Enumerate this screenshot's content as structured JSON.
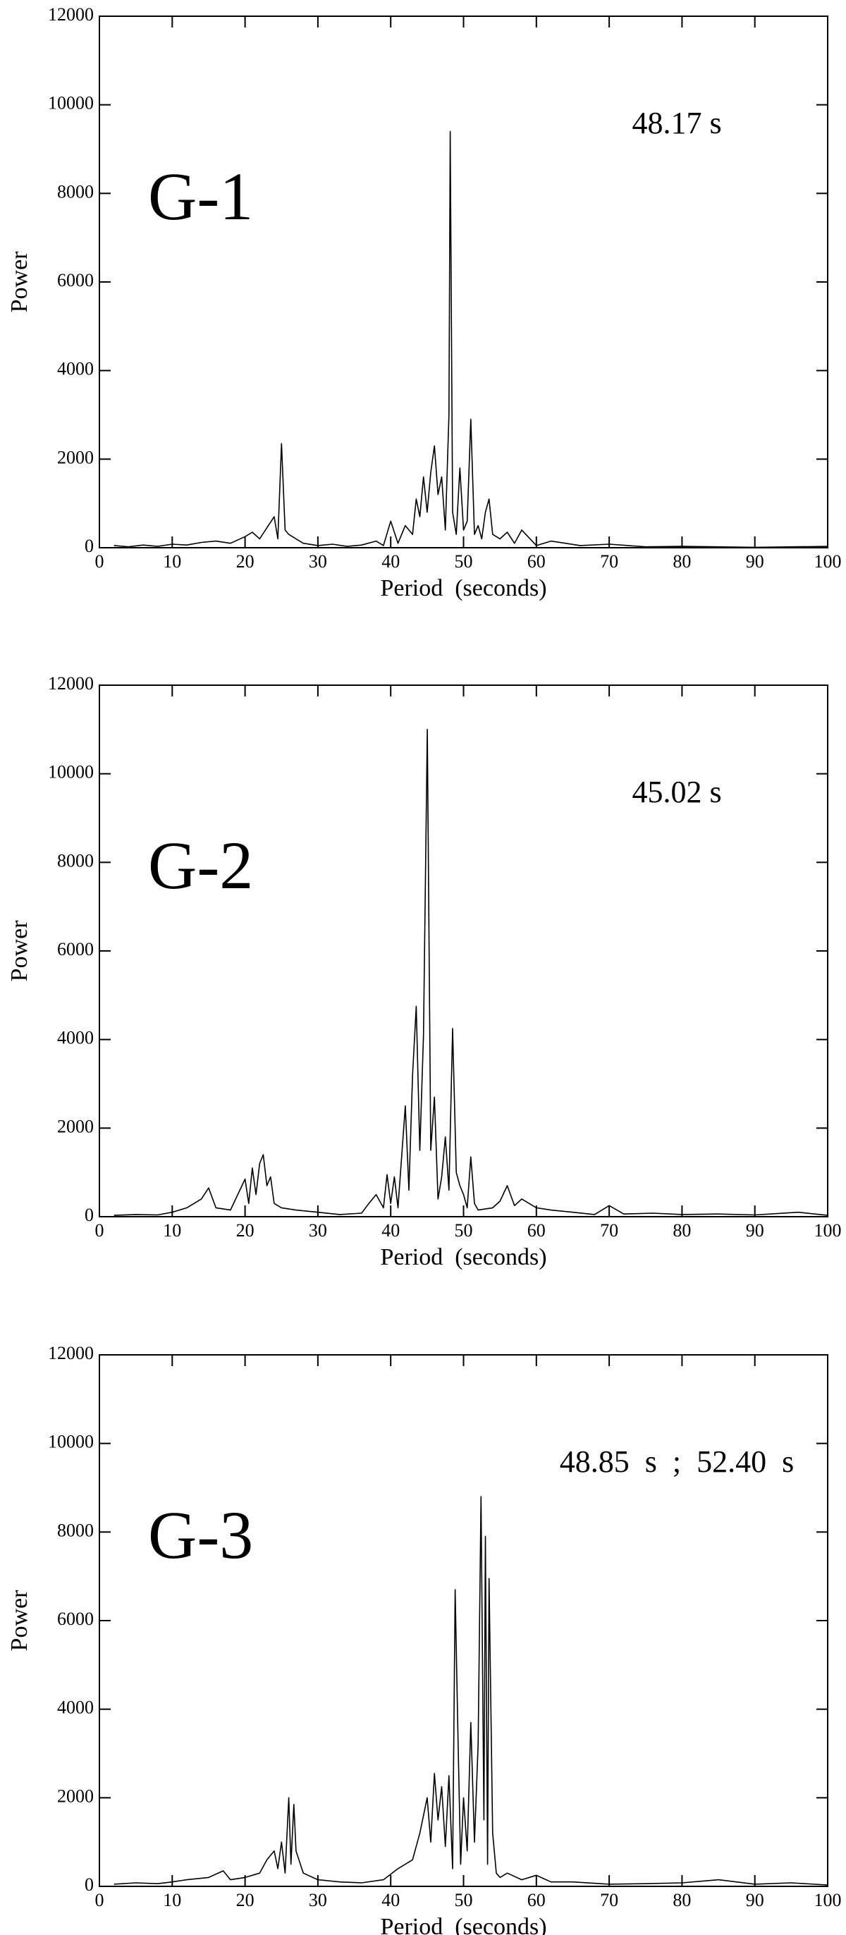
{
  "chart_data": [
    {
      "type": "line",
      "label": "G-1",
      "annotation": "48.17 s",
      "xlabel": "Period  (seconds)",
      "ylabel": "Power",
      "xlim": [
        0,
        100
      ],
      "ylim": [
        0,
        12000
      ],
      "xticks": [
        0,
        10,
        20,
        30,
        40,
        50,
        60,
        70,
        80,
        90,
        100
      ],
      "yticks": [
        0,
        2000,
        4000,
        6000,
        8000,
        10000,
        12000
      ],
      "color": "#000000",
      "x": [
        2,
        4,
        6,
        8,
        10,
        12,
        14,
        16,
        18,
        20,
        21,
        22,
        23,
        24,
        24.5,
        25,
        25.5,
        26,
        27,
        28,
        30,
        32,
        34,
        36,
        38,
        39,
        40,
        41,
        42,
        43,
        43.5,
        44,
        44.5,
        45,
        45.5,
        46,
        46.5,
        47,
        47.5,
        48,
        48.17,
        48.5,
        49,
        49.5,
        50,
        50.5,
        51,
        51.5,
        52,
        52.5,
        53,
        53.5,
        54,
        55,
        56,
        57,
        58,
        60,
        62,
        64,
        66,
        70,
        75,
        80,
        90,
        100
      ],
      "values": [
        50,
        20,
        60,
        30,
        80,
        60,
        120,
        150,
        100,
        250,
        350,
        200,
        450,
        700,
        200,
        2350,
        400,
        300,
        200,
        100,
        50,
        80,
        30,
        60,
        150,
        50,
        600,
        100,
        500,
        300,
        1100,
        700,
        1600,
        800,
        1700,
        2300,
        1200,
        1600,
        400,
        3000,
        9400,
        800,
        300,
        1800,
        400,
        600,
        2900,
        300,
        500,
        200,
        800,
        1100,
        300,
        200,
        350,
        100,
        400,
        50,
        150,
        100,
        50,
        80,
        20,
        30,
        10,
        30
      ]
    },
    {
      "type": "line",
      "label": "G-2",
      "annotation": "45.02 s",
      "xlabel": "Period  (seconds)",
      "ylabel": "Power",
      "xlim": [
        0,
        100
      ],
      "ylim": [
        0,
        12000
      ],
      "xticks": [
        0,
        10,
        20,
        30,
        40,
        50,
        60,
        70,
        80,
        90,
        100
      ],
      "yticks": [
        0,
        2000,
        4000,
        6000,
        8000,
        10000,
        12000
      ],
      "color": "#000000",
      "x": [
        2,
        5,
        8,
        10,
        12,
        14,
        15,
        16,
        18,
        20,
        20.5,
        21,
        21.5,
        22,
        22.5,
        23,
        23.5,
        24,
        25,
        27,
        30,
        33,
        36,
        37,
        38,
        39,
        39.5,
        40,
        40.5,
        41,
        42,
        42.5,
        43,
        43.5,
        44,
        44.5,
        45.02,
        45.5,
        46,
        46.5,
        47,
        47.5,
        48,
        48.5,
        49,
        49.5,
        50,
        50.5,
        51,
        51.5,
        52,
        54,
        55,
        56,
        57,
        58,
        60,
        62,
        65,
        68,
        70,
        72,
        76,
        80,
        85,
        90,
        96,
        100
      ],
      "values": [
        30,
        50,
        40,
        100,
        200,
        400,
        650,
        200,
        150,
        850,
        300,
        1100,
        500,
        1200,
        1400,
        700,
        900,
        300,
        200,
        150,
        100,
        50,
        80,
        300,
        500,
        200,
        950,
        300,
        900,
        200,
        2500,
        600,
        3200,
        4750,
        1500,
        4100,
        11000,
        1500,
        2700,
        400,
        900,
        1800,
        600,
        4250,
        1000,
        700,
        500,
        200,
        1350,
        300,
        150,
        200,
        350,
        700,
        250,
        400,
        200,
        150,
        100,
        50,
        250,
        60,
        80,
        50,
        60,
        40,
        100,
        30
      ]
    },
    {
      "type": "line",
      "label": "G-3",
      "annotation": "48.85  s  ;  52.40  s",
      "xlabel": "Period  (seconds)",
      "ylabel": "Power",
      "xlim": [
        0,
        100
      ],
      "ylim": [
        0,
        12000
      ],
      "xticks": [
        0,
        10,
        20,
        30,
        40,
        50,
        60,
        70,
        80,
        90,
        100
      ],
      "yticks": [
        0,
        2000,
        4000,
        6000,
        8000,
        10000,
        12000
      ],
      "color": "#000000",
      "x": [
        2,
        5,
        8,
        10,
        12,
        15,
        17,
        18,
        20,
        22,
        23,
        24,
        24.5,
        25,
        25.5,
        26,
        26.3,
        26.7,
        27,
        28,
        30,
        33,
        36,
        39,
        41,
        43,
        44,
        45,
        45.5,
        46,
        46.5,
        47,
        47.5,
        48,
        48.5,
        48.85,
        49.2,
        49.6,
        50,
        50.5,
        51,
        51.5,
        52,
        52.4,
        52.8,
        53,
        53.3,
        53.5,
        54,
        54.5,
        55,
        56,
        58,
        60,
        62,
        65,
        70,
        75,
        80,
        85,
        90,
        95,
        100
      ],
      "values": [
        50,
        80,
        60,
        100,
        150,
        200,
        350,
        150,
        200,
        300,
        600,
        800,
        400,
        1000,
        300,
        2000,
        500,
        1850,
        800,
        300,
        150,
        100,
        80,
        150,
        400,
        600,
        1200,
        2000,
        1000,
        2550,
        1500,
        2250,
        900,
        2500,
        400,
        6700,
        3700,
        500,
        2000,
        800,
        3700,
        1000,
        3200,
        8800,
        1500,
        7900,
        500,
        6950,
        1200,
        300,
        200,
        300,
        150,
        250,
        100,
        100,
        50,
        60,
        80,
        150,
        50,
        80,
        30
      ]
    }
  ]
}
